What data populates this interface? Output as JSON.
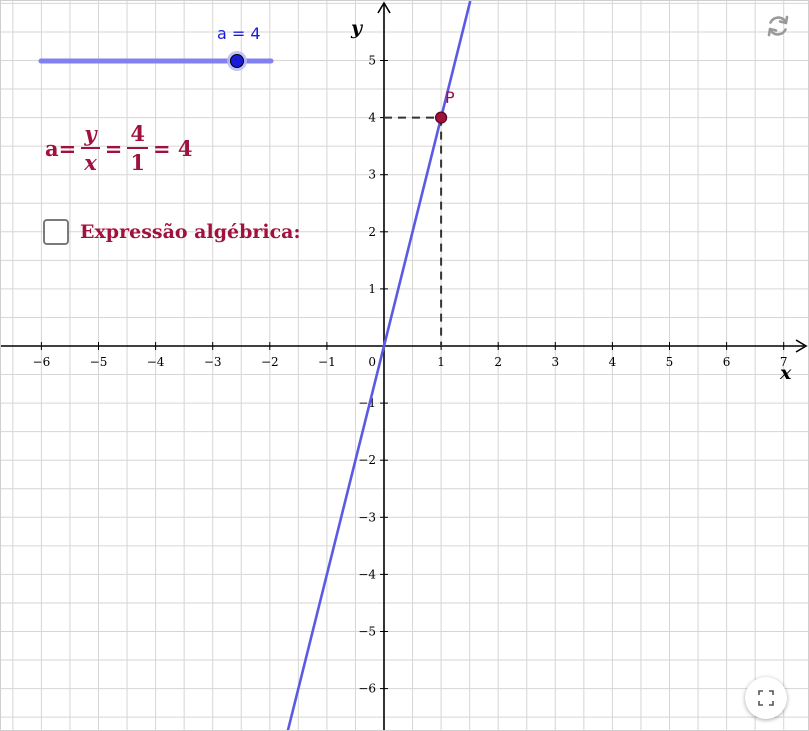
{
  "slider": {
    "label": "a = 4",
    "value": 4,
    "min": -5,
    "max": 5
  },
  "formula": {
    "lhs": "a=",
    "frac1_num": "y",
    "frac1_den": "x",
    "eq1": "=",
    "frac2_num": "4",
    "frac2_den": "1",
    "tail": "= 4"
  },
  "checkbox": {
    "label": "Expressão algébrica:",
    "checked": false
  },
  "point": {
    "label": "P",
    "x": 1,
    "y": 4
  },
  "axes": {
    "x_label": "x",
    "y_label": "y",
    "origin_label": "0",
    "x_ticks": [
      "−6",
      "−5",
      "−4",
      "−3",
      "−2",
      "−1",
      "1",
      "2",
      "3",
      "4",
      "5",
      "6",
      "7"
    ],
    "y_ticks": [
      "5",
      "4",
      "3",
      "2",
      "1",
      "−1",
      "−2",
      "−3",
      "−4",
      "−5",
      "−6"
    ]
  },
  "line": {
    "slope": 4,
    "intercept": 0
  },
  "colors": {
    "line": "#5a5ae6",
    "point": "#a1113e",
    "slider_track": "#8080ee",
    "slider_knob": "#1a1adb",
    "grid": "#d6d6d6",
    "text_accent": "#a1113e"
  },
  "icons": {
    "reset": "reset-icon",
    "fullscreen": "fullscreen-icon"
  }
}
